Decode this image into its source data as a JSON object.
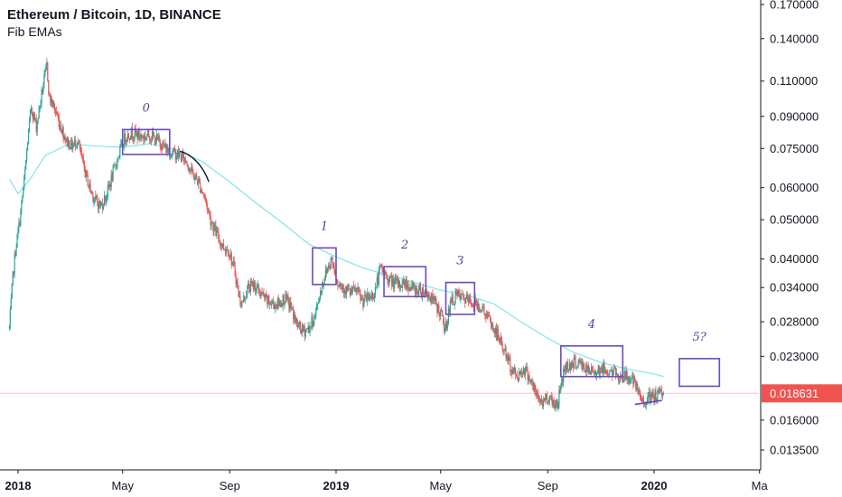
{
  "header": {
    "title": "Ethereum / Bitcoin, 1D, BINANCE",
    "indicator": "Fib EMAs"
  },
  "colors": {
    "up": "#26a69a",
    "down": "#ef5350",
    "ema": "#7fe7e7",
    "box": "#6a4bc2",
    "price_line": "#f7c3c8",
    "price_tag": "#ef5350",
    "axis": "#131722",
    "curve": "#131722"
  },
  "chart_data": {
    "type": "candlestick",
    "y_scale": "log",
    "y_ticks": [
      "0.170000",
      "0.140000",
      "0.110000",
      "0.090000",
      "0.075000",
      "0.060000",
      "0.050000",
      "0.040000",
      "0.034000",
      "0.028000",
      "0.023000",
      "0.016000",
      "0.013500"
    ],
    "x_ticks": [
      {
        "label": "2018",
        "bold": true
      },
      {
        "label": "May",
        "bold": false
      },
      {
        "label": "Sep",
        "bold": false
      },
      {
        "label": "2019",
        "bold": true
      },
      {
        "label": "May",
        "bold": false
      },
      {
        "label": "Sep",
        "bold": false
      },
      {
        "label": "2020",
        "bold": true
      },
      {
        "label": "Ma",
        "bold": false
      }
    ],
    "last_price": "0.018631",
    "price_path": [
      [
        "2017-12-22",
        0.027
      ],
      [
        "2017-12-26",
        0.036
      ],
      [
        "2017-12-29",
        0.042
      ],
      [
        "2018-01-03",
        0.05
      ],
      [
        "2018-01-08",
        0.062
      ],
      [
        "2018-01-12",
        0.078
      ],
      [
        "2018-01-16",
        0.095
      ],
      [
        "2018-01-22",
        0.085
      ],
      [
        "2018-01-29",
        0.105
      ],
      [
        "2018-02-03",
        0.12
      ],
      [
        "2018-02-06",
        0.1
      ],
      [
        "2018-02-12",
        0.094
      ],
      [
        "2018-02-18",
        0.086
      ],
      [
        "2018-02-26",
        0.078
      ],
      [
        "2018-03-05",
        0.076
      ],
      [
        "2018-03-10",
        0.079
      ],
      [
        "2018-03-16",
        0.069
      ],
      [
        "2018-03-23",
        0.061
      ],
      [
        "2018-03-30",
        0.056
      ],
      [
        "2018-04-06",
        0.054
      ],
      [
        "2018-04-13",
        0.058
      ],
      [
        "2018-04-20",
        0.065
      ],
      [
        "2018-04-27",
        0.073
      ],
      [
        "2018-05-04",
        0.08
      ],
      [
        "2018-05-11",
        0.082
      ],
      [
        "2018-05-18",
        0.081
      ],
      [
        "2018-05-25",
        0.08
      ],
      [
        "2018-06-01",
        0.081
      ],
      [
        "2018-06-08",
        0.079
      ],
      [
        "2018-06-15",
        0.077
      ],
      [
        "2018-06-22",
        0.074
      ],
      [
        "2018-06-29",
        0.073
      ],
      [
        "2018-07-06",
        0.072
      ],
      [
        "2018-07-13",
        0.07
      ],
      [
        "2018-07-20",
        0.065
      ],
      [
        "2018-07-27",
        0.062
      ],
      [
        "2018-08-03",
        0.057
      ],
      [
        "2018-08-10",
        0.05
      ],
      [
        "2018-08-17",
        0.046
      ],
      [
        "2018-08-24",
        0.043
      ],
      [
        "2018-08-31",
        0.042
      ],
      [
        "2018-09-07",
        0.037
      ],
      [
        "2018-09-12",
        0.032
      ],
      [
        "2018-09-15",
        0.031
      ],
      [
        "2018-09-22",
        0.034
      ],
      [
        "2018-09-29",
        0.0345
      ],
      [
        "2018-10-06",
        0.033
      ],
      [
        "2018-10-13",
        0.0315
      ],
      [
        "2018-10-20",
        0.031
      ],
      [
        "2018-10-27",
        0.031
      ],
      [
        "2018-11-03",
        0.032
      ],
      [
        "2018-11-10",
        0.0305
      ],
      [
        "2018-11-17",
        0.0275
      ],
      [
        "2018-11-24",
        0.0265
      ],
      [
        "2018-12-01",
        0.027
      ],
      [
        "2018-12-08",
        0.029
      ],
      [
        "2018-12-15",
        0.034
      ],
      [
        "2018-12-22",
        0.038
      ],
      [
        "2018-12-27",
        0.04
      ],
      [
        "2019-01-03",
        0.035
      ],
      [
        "2019-01-10",
        0.034
      ],
      [
        "2019-01-17",
        0.033
      ],
      [
        "2019-01-24",
        0.0335
      ],
      [
        "2019-01-31",
        0.0315
      ],
      [
        "2019-02-07",
        0.032
      ],
      [
        "2019-02-14",
        0.033
      ],
      [
        "2019-02-21",
        0.038
      ],
      [
        "2019-02-28",
        0.036
      ],
      [
        "2019-03-07",
        0.035
      ],
      [
        "2019-03-14",
        0.0345
      ],
      [
        "2019-03-21",
        0.035
      ],
      [
        "2019-03-28",
        0.034
      ],
      [
        "2019-04-04",
        0.0335
      ],
      [
        "2019-04-11",
        0.0335
      ],
      [
        "2019-04-18",
        0.0325
      ],
      [
        "2019-04-25",
        0.031
      ],
      [
        "2019-05-02",
        0.029
      ],
      [
        "2019-05-06",
        0.0265
      ],
      [
        "2019-05-12",
        0.031
      ],
      [
        "2019-05-19",
        0.0325
      ],
      [
        "2019-05-26",
        0.032
      ],
      [
        "2019-06-02",
        0.0315
      ],
      [
        "2019-06-09",
        0.031
      ],
      [
        "2019-06-16",
        0.0305
      ],
      [
        "2019-06-23",
        0.029
      ],
      [
        "2019-06-30",
        0.027
      ],
      [
        "2019-07-07",
        0.0255
      ],
      [
        "2019-07-14",
        0.0235
      ],
      [
        "2019-07-21",
        0.0215
      ],
      [
        "2019-07-28",
        0.0205
      ],
      [
        "2019-08-04",
        0.0215
      ],
      [
        "2019-08-11",
        0.0205
      ],
      [
        "2019-08-18",
        0.0185
      ],
      [
        "2019-08-25",
        0.0177
      ],
      [
        "2019-09-01",
        0.0183
      ],
      [
        "2019-09-08",
        0.0177
      ],
      [
        "2019-09-12",
        0.0175
      ],
      [
        "2019-09-16",
        0.0195
      ],
      [
        "2019-09-20",
        0.0215
      ],
      [
        "2019-09-27",
        0.022
      ],
      [
        "2019-10-04",
        0.0222
      ],
      [
        "2019-10-11",
        0.0218
      ],
      [
        "2019-10-18",
        0.021
      ],
      [
        "2019-10-25",
        0.0212
      ],
      [
        "2019-11-01",
        0.0214
      ],
      [
        "2019-11-08",
        0.0212
      ],
      [
        "2019-11-15",
        0.021
      ],
      [
        "2019-11-22",
        0.0205
      ],
      [
        "2019-11-29",
        0.0205
      ],
      [
        "2019-12-06",
        0.0203
      ],
      [
        "2019-12-13",
        0.0188
      ],
      [
        "2019-12-18",
        0.0178
      ],
      [
        "2019-12-25",
        0.0181
      ],
      [
        "2020-01-01",
        0.0182
      ],
      [
        "2020-01-07",
        0.0185
      ],
      [
        "2020-01-12",
        0.019
      ]
    ],
    "ema_path": [
      [
        "2017-12-22",
        0.063
      ],
      [
        "2018-01-01",
        0.058
      ],
      [
        "2018-01-15",
        0.063
      ],
      [
        "2018-02-01",
        0.072
      ],
      [
        "2018-03-01",
        0.077
      ],
      [
        "2018-04-01",
        0.076
      ],
      [
        "2018-05-01",
        0.0755
      ],
      [
        "2018-06-01",
        0.077
      ],
      [
        "2018-07-01",
        0.0745
      ],
      [
        "2018-08-01",
        0.0695
      ],
      [
        "2018-09-01",
        0.062
      ],
      [
        "2018-10-01",
        0.055
      ],
      [
        "2018-11-01",
        0.049
      ],
      [
        "2018-12-01",
        0.0435
      ],
      [
        "2019-01-01",
        0.0405
      ],
      [
        "2019-02-01",
        0.038
      ],
      [
        "2019-03-01",
        0.0365
      ],
      [
        "2019-04-01",
        0.035
      ],
      [
        "2019-05-01",
        0.0335
      ],
      [
        "2019-06-01",
        0.0325
      ],
      [
        "2019-07-01",
        0.031
      ],
      [
        "2019-08-01",
        0.028
      ],
      [
        "2019-09-01",
        0.0255
      ],
      [
        "2019-10-01",
        0.0235
      ],
      [
        "2019-11-01",
        0.0222
      ],
      [
        "2019-12-01",
        0.0214
      ],
      [
        "2020-01-01",
        0.0208
      ],
      [
        "2020-01-12",
        0.0205
      ]
    ],
    "curve_path": [
      [
        "2018-07-06",
        0.0738
      ],
      [
        "2018-07-20",
        0.0725
      ],
      [
        "2018-08-01",
        0.068
      ],
      [
        "2018-08-08",
        0.062
      ]
    ],
    "annotations": [
      {
        "label": "0",
        "x0": "2018-05-01",
        "x1": "2018-06-24",
        "y_low": 0.0725,
        "y_high": 0.0835
      },
      {
        "label": "1",
        "x0": "2018-12-05",
        "x1": "2019-01-01",
        "y_low": 0.0346,
        "y_high": 0.0426
      },
      {
        "label": "2",
        "x0": "2019-02-25",
        "x1": "2019-04-14",
        "y_low": 0.0323,
        "y_high": 0.0383
      },
      {
        "label": "3",
        "x0": "2019-05-07",
        "x1": "2019-06-09",
        "y_low": 0.0292,
        "y_high": 0.035
      },
      {
        "label": "4",
        "x0": "2019-09-16",
        "x1": "2019-11-26",
        "y_low": 0.0205,
        "y_high": 0.0244
      },
      {
        "label": "5?",
        "x0": "2020-01-30",
        "x1": "2020-03-16",
        "y_low": 0.0194,
        "y_high": 0.0227
      }
    ],
    "trend_line": [
      [
        "2019-12-10",
        0.0175
      ],
      [
        "2020-01-10",
        0.0179
      ]
    ]
  }
}
